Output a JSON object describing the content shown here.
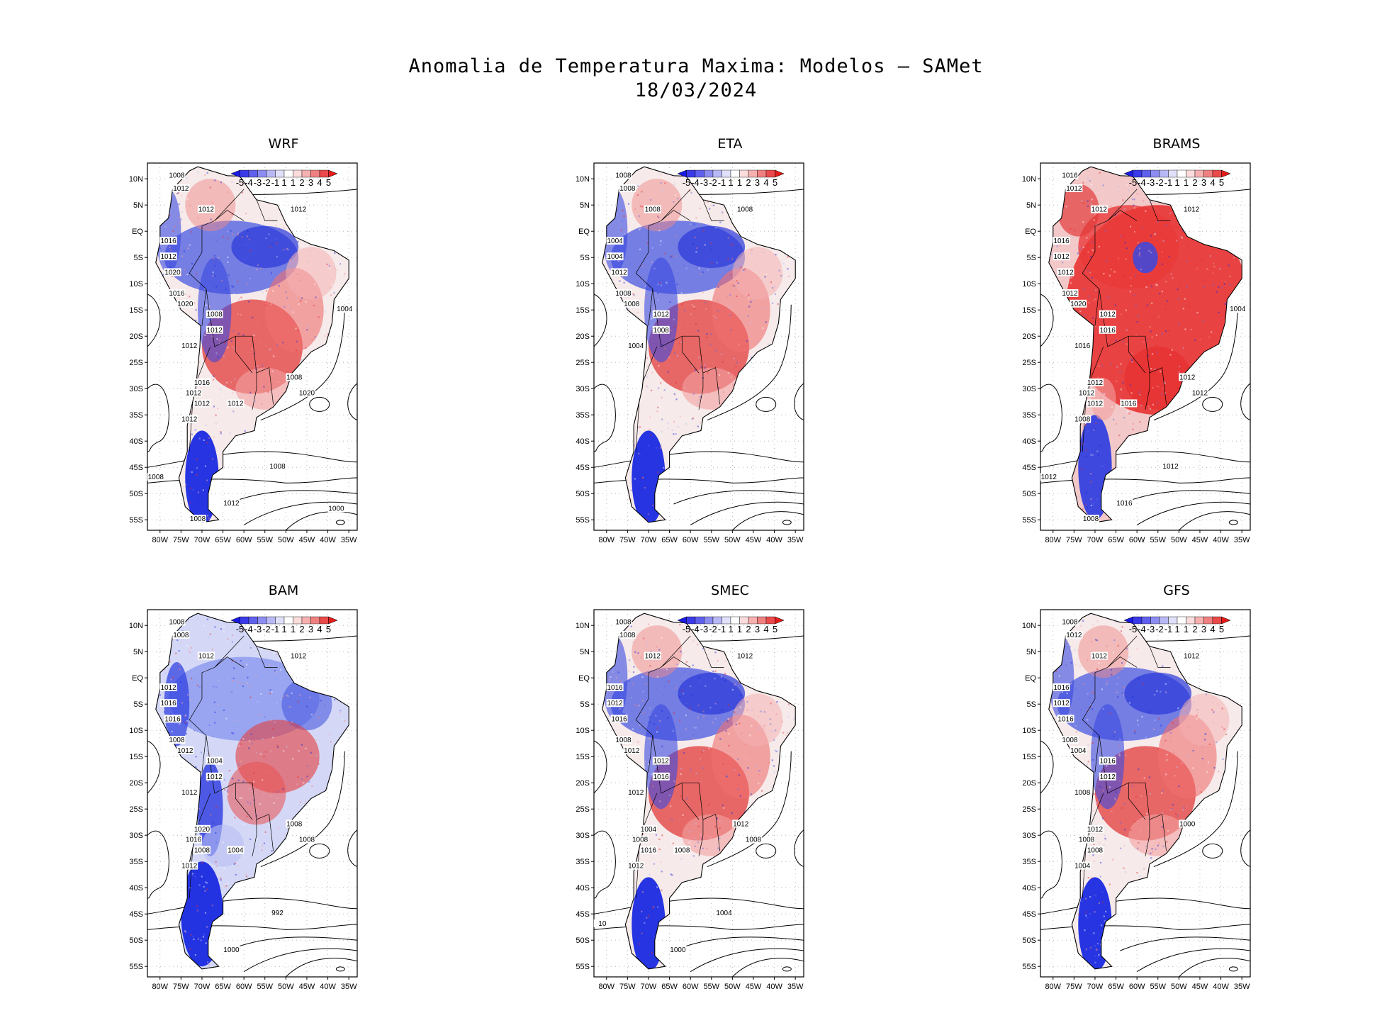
{
  "title": {
    "line1": "Anomalia de Temperatura Maxima: Modelos – SAMet",
    "line2": "18/03/2024"
  },
  "colorbar": {
    "labels": [
      "-5",
      "-4",
      "-3",
      "-2",
      "-1",
      "1",
      "1",
      "2",
      "3",
      "4",
      "5"
    ],
    "colors": [
      "#1a1ae6",
      "#3a3ae8",
      "#6060ee",
      "#8c8cf2",
      "#b8b8f6",
      "#e0e0fa",
      "#ffffff",
      "#fadcdc",
      "#f6b0b0",
      "#f08080",
      "#ea4a4a",
      "#e61a1a"
    ]
  },
  "axes": {
    "lat_labels": [
      "10N",
      "5N",
      "EQ",
      "5S",
      "10S",
      "15S",
      "20S",
      "25S",
      "30S",
      "35S",
      "40S",
      "45S",
      "50S",
      "55S"
    ],
    "lon_labels": [
      "80W",
      "75W",
      "70W",
      "65W",
      "60W",
      "55W",
      "50W",
      "45W",
      "40W",
      "35W"
    ]
  },
  "panels": [
    {
      "name": "WRF",
      "scheme": "mixed",
      "isobars": [
        "1008",
        "1012",
        "1012",
        "1012",
        "1016",
        "1012",
        "1020",
        "1016",
        "1020",
        "1008",
        "1012",
        "1012",
        "1016",
        "1012",
        "1012",
        "1012",
        "1008",
        "1020",
        "1012",
        "1008",
        "1012",
        "1008",
        "1008",
        "1004",
        "1000"
      ]
    },
    {
      "name": "ETA",
      "scheme": "mixed",
      "isobars": [
        "1008",
        "1008",
        "1008",
        "1008",
        "1004",
        "1004",
        "1012",
        "1008",
        "1008",
        "1012",
        "1008",
        "1004"
      ]
    },
    {
      "name": "BRAMS",
      "scheme": "warm",
      "isobars": [
        "1016",
        "1012",
        "1012",
        "1012",
        "1016",
        "1012",
        "1012",
        "1012",
        "1020",
        "1012",
        "1016",
        "1016",
        "1012",
        "1012",
        "1012",
        "1008",
        "1012",
        "1012",
        "1016",
        "1012",
        "1016",
        "1012",
        "1008",
        "1004"
      ]
    },
    {
      "name": "BAM",
      "scheme": "cool",
      "isobars": [
        "1008",
        "1008",
        "1012",
        "1012",
        "1012",
        "1016",
        "1016",
        "1008",
        "1012",
        "1004",
        "1012",
        "1012",
        "1020",
        "1016",
        "1008",
        "1012",
        "1008",
        "1008",
        "1004",
        "992",
        "1000"
      ]
    },
    {
      "name": "SMEC",
      "scheme": "mixed",
      "isobars": [
        "1008",
        "1008",
        "1012",
        "1012",
        "1016",
        "1012",
        "1016",
        "1008",
        "1012",
        "1012",
        "1016",
        "1012",
        "1004",
        "1008",
        "1016",
        "1012",
        "1012",
        "1008",
        "1008",
        "1004",
        "1000",
        "10"
      ]
    },
    {
      "name": "GFS",
      "scheme": "mixed",
      "isobars": [
        "1008",
        "1012",
        "1012",
        "1012",
        "1016",
        "1012",
        "1016",
        "1008",
        "1004",
        "1016",
        "1012",
        "1008",
        "1012",
        "1008",
        "1008",
        "1004",
        "1000"
      ]
    }
  ]
}
